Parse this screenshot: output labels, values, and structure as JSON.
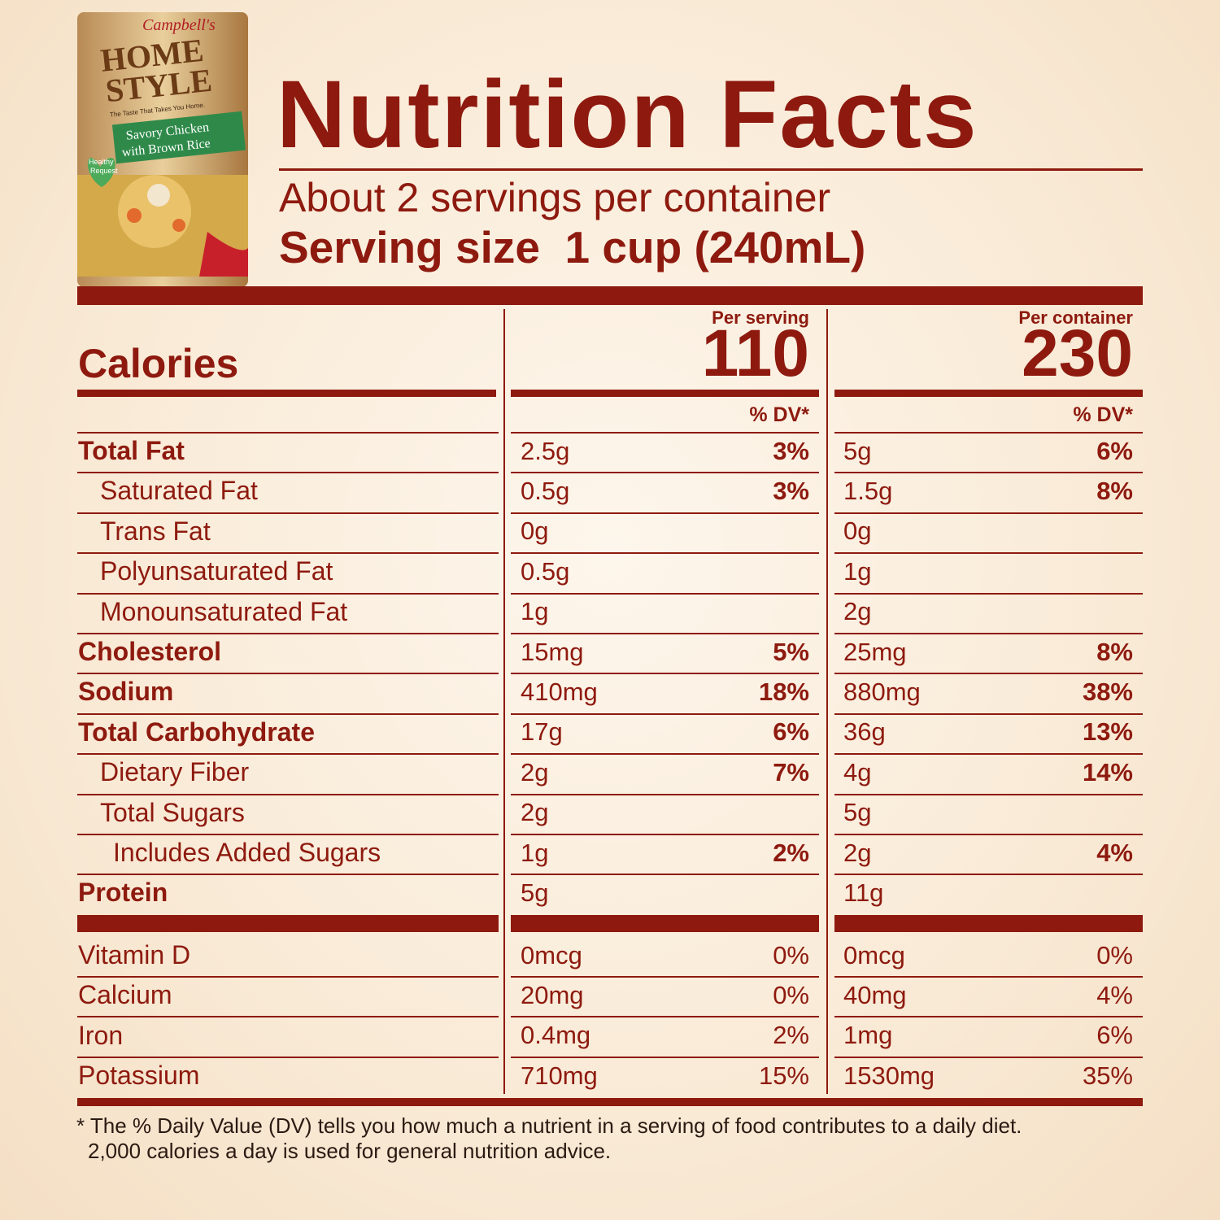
{
  "product": {
    "brand": "Campbell's",
    "line": [
      "HOME",
      "STYLE"
    ],
    "tagline": "The Taste That Takes You Home.",
    "variety": [
      "Savory Chicken",
      "with Brown Rice"
    ],
    "badge": [
      "Healthy",
      "Request"
    ]
  },
  "header": {
    "title": "Nutrition Facts",
    "servings": "About 2 servings per container",
    "serving_size": "Serving size  1 cup (240mL)"
  },
  "table": {
    "calories_label": "Calories",
    "columns": [
      {
        "heading": "Per serving",
        "calories": "110",
        "dv_heading": "% DV*"
      },
      {
        "heading": "Per container",
        "calories": "230",
        "dv_heading": "% DV*"
      }
    ],
    "rows": [
      {
        "name": "Total Fat",
        "values": [
          [
            "2.5g",
            "3%"
          ],
          [
            "5g",
            "6%"
          ]
        ]
      },
      {
        "name": "Saturated Fat",
        "values": [
          [
            "0.5g",
            "3%"
          ],
          [
            "1.5g",
            "8%"
          ]
        ]
      },
      {
        "name": "Trans Fat",
        "values": [
          [
            "0g",
            null
          ],
          [
            "0g",
            null
          ]
        ]
      },
      {
        "name": "Polyunsaturated Fat",
        "values": [
          [
            "0.5g",
            null
          ],
          [
            "1g",
            null
          ]
        ]
      },
      {
        "name": "Monounsaturated Fat",
        "values": [
          [
            "1g",
            null
          ],
          [
            "2g",
            null
          ]
        ]
      },
      {
        "name": "Cholesterol",
        "values": [
          [
            "15mg",
            "5%"
          ],
          [
            "25mg",
            "8%"
          ]
        ]
      },
      {
        "name": "Sodium",
        "values": [
          [
            "410mg",
            "18%"
          ],
          [
            "880mg",
            "38%"
          ]
        ]
      },
      {
        "name": "Total Carbohydrate",
        "values": [
          [
            "17g",
            "6%"
          ],
          [
            "36g",
            "13%"
          ]
        ]
      },
      {
        "name": "Dietary Fiber",
        "values": [
          [
            "2g",
            "7%"
          ],
          [
            "4g",
            "14%"
          ]
        ]
      },
      {
        "name": "Total Sugars",
        "values": [
          [
            "2g",
            null
          ],
          [
            "5g",
            null
          ]
        ]
      },
      {
        "name": "Includes Added Sugars",
        "values": [
          [
            "1g",
            "2%"
          ],
          [
            "2g",
            "4%"
          ]
        ]
      },
      {
        "name": "Protein",
        "values": [
          [
            "5g",
            null
          ],
          [
            "11g",
            null
          ]
        ]
      }
    ],
    "vitamins": [
      {
        "name": "Vitamin D",
        "values": [
          [
            "0mcg",
            "0%"
          ],
          [
            "0mcg",
            "0%"
          ]
        ]
      },
      {
        "name": "Calcium",
        "values": [
          [
            "20mg",
            "0%"
          ],
          [
            "40mg",
            "4%"
          ]
        ]
      },
      {
        "name": "Iron",
        "values": [
          [
            "0.4mg",
            "2%"
          ],
          [
            "1mg",
            "6%"
          ]
        ]
      },
      {
        "name": "Potassium",
        "values": [
          [
            "710mg",
            "15%"
          ],
          [
            "1530mg",
            "35%"
          ]
        ]
      }
    ]
  },
  "footnote": [
    "* The % Daily Value (DV) tells you how much a nutrient in a serving of food contributes to a daily diet.",
    "2,000 calories a day is used for general nutrition advice."
  ]
}
